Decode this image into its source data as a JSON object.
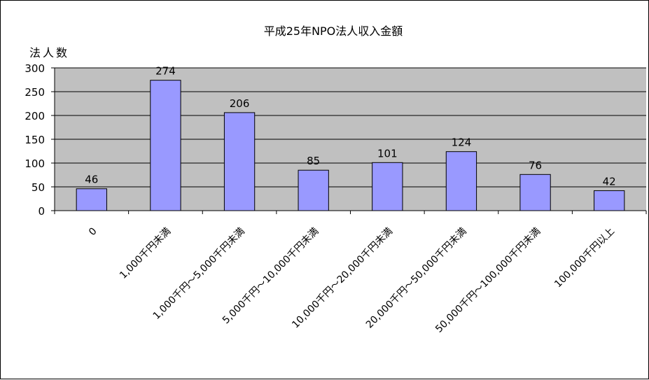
{
  "chart_data": {
    "type": "bar",
    "title": "平成25年NPO法人収入金額",
    "ylabel": "法人数",
    "xlabel": "",
    "categories": [
      "0",
      "1,000千円未満",
      "1,000千円～5,000千円未満",
      "5,000千円～10,000千円未満",
      "10,000千円～20,000千円未満",
      "20,000千円～50,000千円未満",
      "50,000千円～100,000千円未満",
      "100,000千円以上"
    ],
    "values": [
      46,
      274,
      206,
      85,
      101,
      124,
      76,
      42
    ],
    "ylim": [
      0,
      300
    ],
    "yticks": [
      0,
      50,
      100,
      150,
      200,
      250,
      300
    ],
    "grid": true,
    "legend": "none",
    "colors": {
      "bar": "#9999ff",
      "plot_bg": "#c0c0c0",
      "gridline": "#000000"
    }
  }
}
